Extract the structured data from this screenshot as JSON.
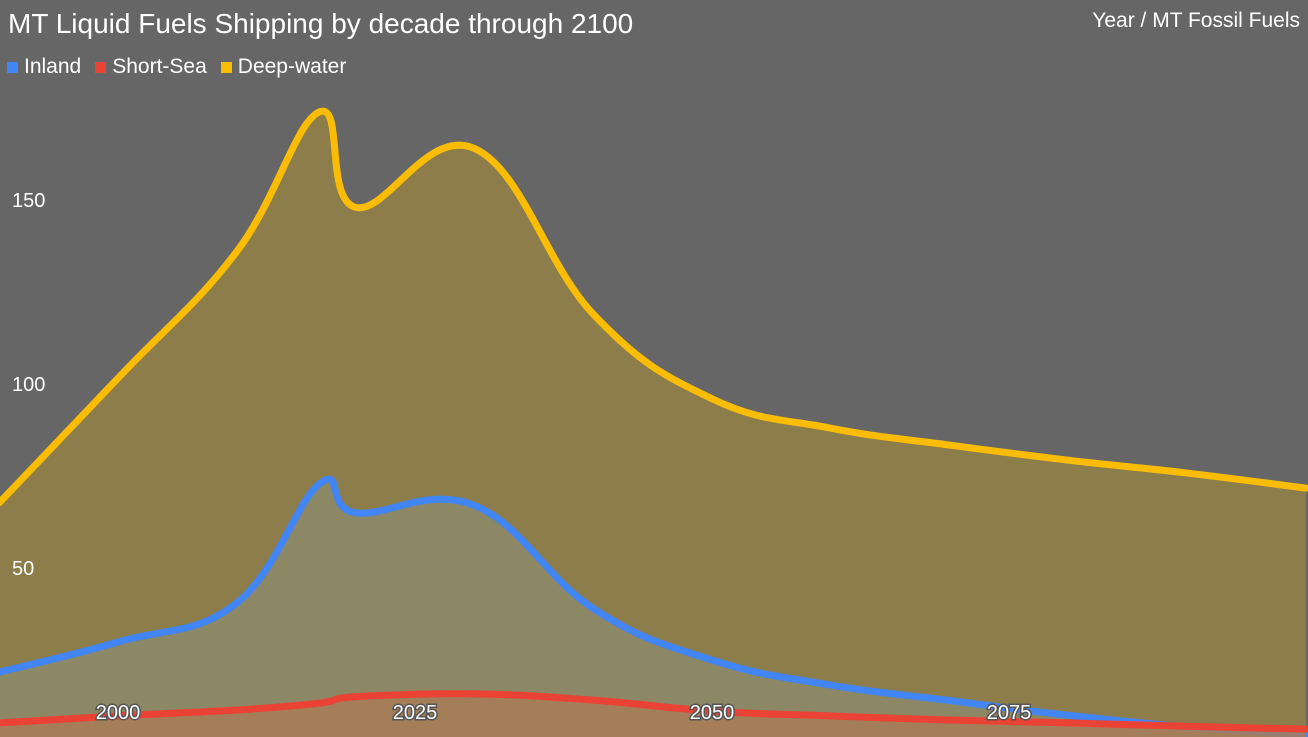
{
  "chart_data": {
    "type": "area",
    "title": "MT Liquid Fuels Shipping by decade through 2100",
    "subtitle": "Year / MT Fossil Fuels",
    "x": [
      1990,
      2000,
      2010,
      2017,
      2020,
      2030,
      2040,
      2050,
      2060,
      2070,
      2080,
      2090,
      2100
    ],
    "xlim": [
      1990,
      2100
    ],
    "ylim": [
      0,
      204
    ],
    "x_ticks": [
      "2000",
      "2025",
      "2050",
      "2075"
    ],
    "y_ticks": [
      "50",
      "100",
      "150"
    ],
    "grid": false,
    "legend_position": "top-left",
    "background": "#666666",
    "series": [
      {
        "name": "Deep-water",
        "color": "#FBBC04",
        "fill": "#948145",
        "values": [
          67.7,
          101.6,
          136,
          174,
          148,
          164,
          119,
          96,
          88,
          83.4,
          79.3,
          75.8,
          71.7
        ]
      },
      {
        "name": "Inland",
        "color": "#4285F4",
        "fill": "#8c8868",
        "values": [
          21.7,
          29.9,
          40.5,
          73,
          65,
          67,
          39,
          25,
          18.2,
          14,
          10,
          6.8,
          4.6
        ]
      },
      {
        "name": "Short-Sea",
        "color": "#EA4335",
        "fill": "#a87c57",
        "values": [
          7.9,
          9.8,
          11.4,
          13.3,
          15,
          15.8,
          14.1,
          11.1,
          9.8,
          8.7,
          7.9,
          7,
          6.2
        ]
      }
    ],
    "legend": [
      "Inland",
      "Short-Sea",
      "Deep-water"
    ]
  }
}
